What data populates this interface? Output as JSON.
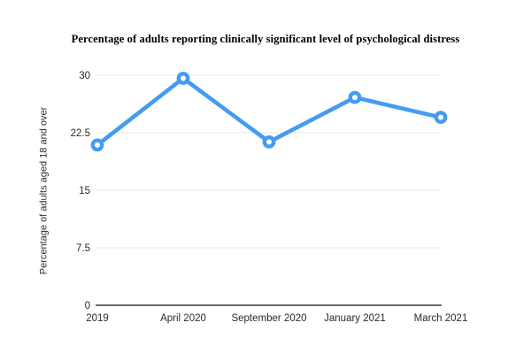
{
  "figure": {
    "background": "#ffffff"
  },
  "chart_data": {
    "type": "line",
    "title": "Percentage of adults reporting clinically significant level of psychological distress",
    "xlabel": "",
    "ylabel": "Percentage of adults aged 18 and over",
    "categories": [
      "2019",
      "April 2020",
      "September 2020",
      "January 2021",
      "March 2021"
    ],
    "values": [
      20.9,
      29.6,
      21.3,
      27.1,
      24.5
    ],
    "y_ticks": [
      0,
      7.5,
      15,
      22.5,
      30
    ],
    "y_tick_labels": [
      "0",
      "7.5",
      "15",
      "22.5",
      "30"
    ],
    "ylim": [
      0,
      30
    ],
    "grid": true,
    "legend_position": "none",
    "colors": {
      "line": "#449CF2",
      "marker_fill": "#FFFFFF",
      "grid": "#E8E8E8",
      "axis": "#3C3C3C",
      "text": "#2B2B2B",
      "title": "#000000"
    }
  }
}
